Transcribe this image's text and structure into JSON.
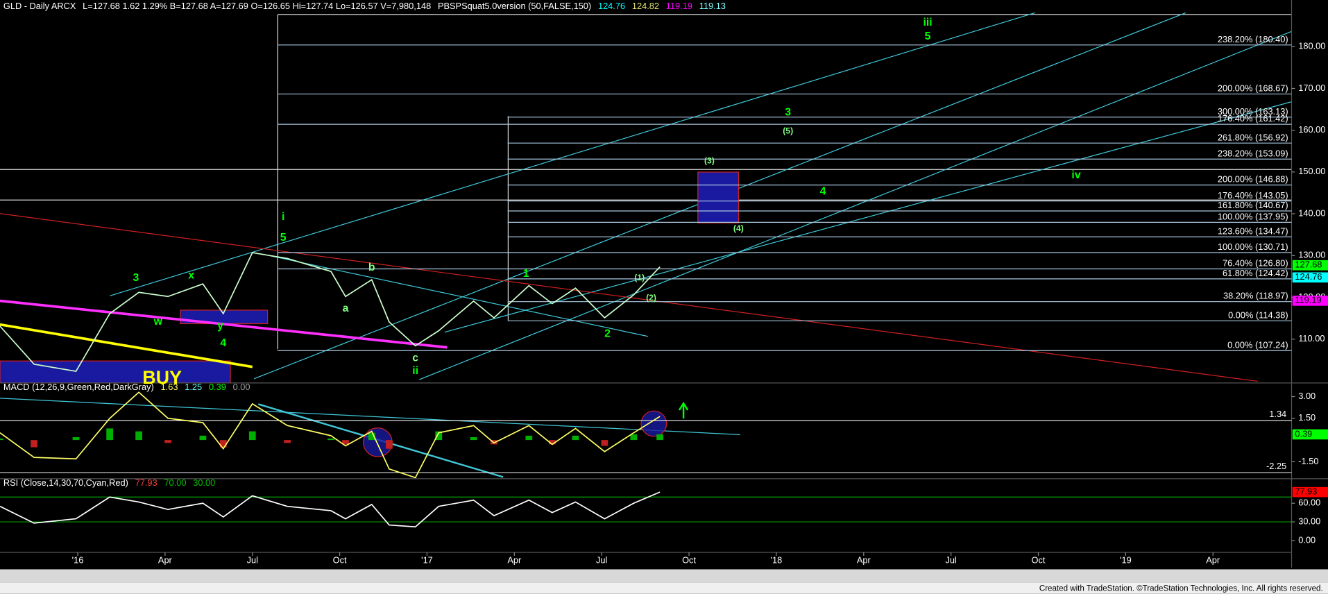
{
  "header": {
    "symbol": "GLD - Daily  ARCX",
    "quote": "L=127.68  1.62  1.29%  B=127.68  A=127.69  O=126.65  Hi=127.74  Lo=126.57  V=7,980,148",
    "study": "PBSPSquat5.0version (50,FALSE,150)",
    "study_values": [
      {
        "text": "124.76",
        "color": "#00ffff"
      },
      {
        "text": "124.82",
        "color": "#e0e070"
      },
      {
        "text": "119.19",
        "color": "#ff00ff"
      },
      {
        "text": "119.13",
        "color": "#80ffff"
      }
    ]
  },
  "chart_data": [
    {
      "type": "line",
      "color": "#ccffcc",
      "x": [
        -2.67,
        -1.5,
        -0.06,
        1.1,
        2.1,
        3.1,
        4.3,
        5.0,
        6.0,
        7.2,
        8.7,
        9.2,
        10.1,
        10.7,
        11.6,
        12.4,
        13.6,
        14.3,
        15.5,
        16.3,
        17.1,
        18.1,
        19.1,
        20.0
      ],
      "values": [
        113.1,
        104,
        102.3,
        116.1,
        121.2,
        120.2,
        123.2,
        116.1,
        130.7,
        129.3,
        126.2,
        120.2,
        124.2,
        114.1,
        108.4,
        112.0,
        119.1,
        115.1,
        122.8,
        118.5,
        122.2,
        115.1,
        120.6,
        127.3
      ],
      "xlim": [
        -2.67,
        41.7
      ],
      "xticks": [
        {
          "value": 0,
          "label": "'16"
        },
        {
          "value": 3,
          "label": "Apr"
        },
        {
          "value": 6,
          "label": "Jul"
        },
        {
          "value": 9,
          "label": "Oct"
        },
        {
          "value": 12,
          "label": "'17"
        },
        {
          "value": 15,
          "label": "Apr"
        },
        {
          "value": 18,
          "label": "Jul"
        },
        {
          "value": 21,
          "label": "Oct"
        },
        {
          "value": 24,
          "label": "'18"
        },
        {
          "value": 27,
          "label": "Apr"
        },
        {
          "value": 30,
          "label": "Jul"
        },
        {
          "value": 33,
          "label": "Oct"
        },
        {
          "value": 36,
          "label": "'19"
        },
        {
          "value": 39,
          "label": "Apr"
        }
      ],
      "ylim": [
        99.5,
        188.1
      ],
      "yticks": [
        {
          "value": 110,
          "label": "110.00"
        },
        {
          "value": 120,
          "label": "120.00"
        },
        {
          "value": 130,
          "label": "130.00"
        },
        {
          "value": 140,
          "label": "140.00"
        },
        {
          "value": 150,
          "label": "150.00"
        },
        {
          "value": 160,
          "label": "160.00"
        },
        {
          "value": 170,
          "label": "170.00"
        },
        {
          "value": 180,
          "label": "180.00"
        }
      ],
      "fib_color": "#a8c8e0",
      "fib_levels": [
        {
          "value": 180.4,
          "label": "238.20% (180.40)",
          "from": 6.86
        },
        {
          "value": 168.67,
          "label": "200.00% (168.67)",
          "from": 6.86
        },
        {
          "value": 163.13,
          "label": "300.00% (163.13)",
          "from": 14.77
        },
        {
          "value": 161.42,
          "label": "176.40% (161.42)",
          "from": 6.86
        },
        {
          "value": 156.92,
          "label": "261.80% (156.92)",
          "from": 14.77
        },
        {
          "value": 153.09,
          "label": "238.20% (153.09)",
          "from": 14.77
        },
        {
          "value": 146.88,
          "label": "200.00% (146.88)",
          "from": 14.77
        },
        {
          "value": 143.05,
          "label": "176.40% (143.05)",
          "from": 14.77
        },
        {
          "value": 140.67,
          "label": "161.80% (140.67)",
          "from": 14.77
        },
        {
          "value": 137.95,
          "label": "100.00% (137.95)",
          "from": 14.77
        },
        {
          "value": 134.47,
          "label": "123.60% (134.47)",
          "from": 14.77
        },
        {
          "value": 130.71,
          "label": "100.00% (130.71)",
          "from": 6.86
        },
        {
          "value": 126.8,
          "label": "76.40% (126.80)",
          "from": 6.86
        },
        {
          "value": 124.42,
          "label": "61.80% (124.42)",
          "from": 14.77
        },
        {
          "value": 118.97,
          "label": "38.20% (118.97)",
          "from": 14.77
        },
        {
          "value": 114.38,
          "label": "0.00% (114.38)",
          "from": 14.77
        },
        {
          "value": 107.24,
          "label": "0.00% (107.24)",
          "from": 6.86
        }
      ],
      "last_values": [
        {
          "value": 127.68,
          "label": "127.68",
          "color": "#00ff00"
        },
        {
          "value": 124.76,
          "label": "124.76",
          "color": "#00ffff"
        },
        {
          "value": 119.19,
          "label": "119.19",
          "color": "#ff00ff"
        }
      ],
      "annotations": [
        {
          "text": "iii",
          "x": 29.2,
          "y": 185.7,
          "color": "#00ff00"
        },
        {
          "text": "5",
          "x": 29.2,
          "y": 182.4,
          "color": "#00ff00"
        },
        {
          "text": "3",
          "x": 24.4,
          "y": 164.2,
          "color": "#00ff00"
        },
        {
          "text": "(5)",
          "x": 24.4,
          "y": 159.7,
          "color": "#80ff80"
        },
        {
          "text": "(3)",
          "x": 21.7,
          "y": 152.6,
          "color": "#80ff80"
        },
        {
          "text": "4",
          "x": 25.6,
          "y": 145.3,
          "color": "#00ff00"
        },
        {
          "text": "(4)",
          "x": 22.7,
          "y": 136.4,
          "color": "#80ff80"
        },
        {
          "text": "iv",
          "x": 34.3,
          "y": 149.2,
          "color": "#00ff00"
        },
        {
          "text": "i",
          "x": 7.06,
          "y": 139.2,
          "color": "#00ff00"
        },
        {
          "text": "5",
          "x": 7.06,
          "y": 134.2,
          "color": "#00ff00"
        },
        {
          "text": "3",
          "x": 2.0,
          "y": 124.6,
          "color": "#00ff00"
        },
        {
          "text": "x",
          "x": 3.9,
          "y": 125.2,
          "color": "#00ff00"
        },
        {
          "text": "w",
          "x": 2.76,
          "y": 114.1,
          "color": "#00ff00"
        },
        {
          "text": "y",
          "x": 4.9,
          "y": 113.1,
          "color": "#00ff00"
        },
        {
          "text": "4",
          "x": 5.0,
          "y": 109.0,
          "color": "#00ff00"
        },
        {
          "text": "b",
          "x": 10.1,
          "y": 127.1,
          "color": "#80ff80"
        },
        {
          "text": "a",
          "x": 9.2,
          "y": 117.3,
          "color": "#80ff80"
        },
        {
          "text": "c",
          "x": 11.6,
          "y": 105.4,
          "color": "#80ff80"
        },
        {
          "text": "ii",
          "x": 11.6,
          "y": 102.3,
          "color": "#00ff00"
        },
        {
          "text": "1",
          "x": 15.4,
          "y": 125.6,
          "color": "#00ff00"
        },
        {
          "text": "2",
          "x": 18.2,
          "y": 111.2,
          "color": "#00ff00"
        },
        {
          "text": "(1)",
          "x": 19.3,
          "y": 124.6,
          "color": "#80ff80"
        },
        {
          "text": "(2)",
          "x": 19.7,
          "y": 119.8,
          "color": "#80ff80"
        },
        {
          "text": "BUY",
          "x": 2.9,
          "y": 100.5,
          "color": "#ffff00"
        }
      ]
    },
    {
      "type": "line",
      "title": "MACD (12,26,9,Green,Red,DarkGray)",
      "color": "#ffff66",
      "legend_values": [
        {
          "text": "1.63",
          "color": "#ffff66"
        },
        {
          "text": "1.25",
          "color": "#66ffff"
        },
        {
          "text": "0.39",
          "color": "#00ff00"
        },
        {
          "text": "0.00",
          "color": "#a0a0a0"
        }
      ],
      "x": [
        -2.67,
        -1.5,
        -0.06,
        1.1,
        2.1,
        3.1,
        4.3,
        5.0,
        6.0,
        7.2,
        8.7,
        9.2,
        10.1,
        10.7,
        11.6,
        12.4,
        13.6,
        14.3,
        15.5,
        16.3,
        17.1,
        18.1,
        19.1,
        20.0
      ],
      "values": [
        0.5,
        -1.2,
        -1.3,
        1.5,
        3.3,
        1.5,
        1.2,
        -0.6,
        2.5,
        1.0,
        0.3,
        -0.4,
        0.6,
        -2.0,
        -2.6,
        0.5,
        1.0,
        -0.2,
        1.0,
        -0.3,
        0.8,
        -0.8,
        0.5,
        1.63
      ],
      "histogram": [
        0.1,
        -0.5,
        0.2,
        0.8,
        0.6,
        -0.2,
        0.3,
        -0.5,
        0.6,
        -0.2,
        0.1,
        -0.3,
        0.5,
        -0.6,
        0.0,
        0.6,
        0.2,
        -0.3,
        0.3,
        -0.3,
        0.3,
        -0.4,
        0.4,
        0.39
      ],
      "ylim": [
        -2.67,
        3.94
      ],
      "yticks": [
        {
          "value": 3,
          "label": "3.00"
        },
        {
          "value": 1.5,
          "label": "1.50"
        },
        {
          "value": -1.5,
          "label": "-1.50"
        }
      ],
      "levels": [
        {
          "value": 1.34,
          "label": "1.34"
        },
        {
          "value": -2.25,
          "label": "-2.25"
        }
      ],
      "last_value": {
        "value": 0.39,
        "label": "0.39",
        "color": "#00ff00"
      }
    },
    {
      "type": "line",
      "title": "RSI (Close,14,30,70,Cyan,Red)",
      "color": "#ffffff",
      "legend_values": [
        {
          "text": "77.93",
          "color": "#ff4040"
        },
        {
          "text": "70.00",
          "color": "#00c000"
        },
        {
          "text": "30.00",
          "color": "#00c000"
        }
      ],
      "x": [
        -2.67,
        -1.5,
        -0.06,
        1.1,
        2.1,
        3.1,
        4.3,
        5.0,
        6.0,
        7.2,
        8.7,
        9.2,
        10.1,
        10.7,
        11.6,
        12.4,
        13.6,
        14.3,
        15.5,
        16.3,
        17.1,
        18.1,
        19.1,
        20.0
      ],
      "values": [
        55,
        28,
        35,
        70,
        62,
        50,
        60,
        38,
        72,
        55,
        48,
        35,
        58,
        25,
        22,
        55,
        65,
        40,
        65,
        45,
        62,
        35,
        60,
        77.93
      ],
      "ylim": [
        -19.1,
        99.5
      ],
      "yticks": [
        {
          "value": 60,
          "label": "60.00"
        },
        {
          "value": 30,
          "label": "30.00"
        },
        {
          "value": 0,
          "label": "0.00"
        }
      ],
      "levels": [
        {
          "value": 70,
          "color": "#00a000"
        },
        {
          "value": 30,
          "color": "#00a000"
        }
      ],
      "last_value": {
        "value": 77.93,
        "label": "77.93",
        "color": "#ff0000"
      }
    }
  ],
  "footer": "Created with TradeStation. ©TradeStation Technologies, Inc. All rights reserved."
}
